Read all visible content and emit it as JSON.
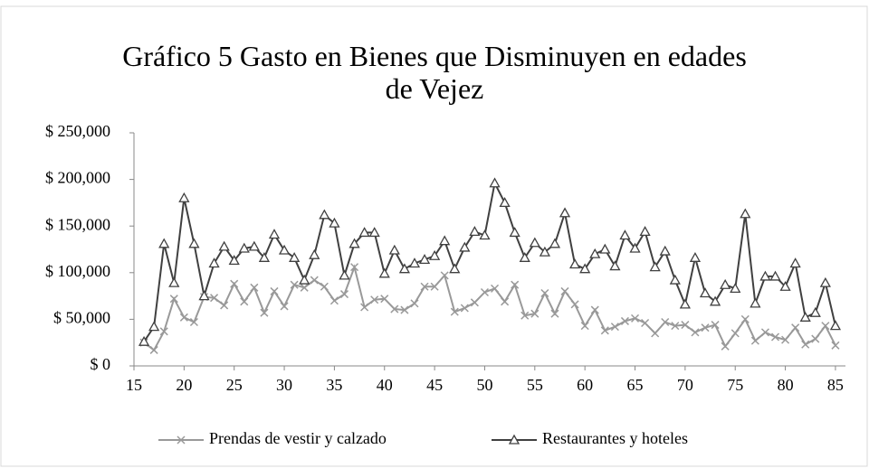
{
  "chart_data": {
    "type": "line",
    "title": "Gráfico 5 Gasto en Bienes que Disminuyen en edades de Vejez",
    "x": [
      16,
      17,
      18,
      19,
      20,
      21,
      22,
      23,
      24,
      25,
      26,
      27,
      28,
      29,
      30,
      31,
      32,
      33,
      34,
      35,
      36,
      37,
      38,
      39,
      40,
      41,
      42,
      43,
      44,
      45,
      46,
      47,
      48,
      49,
      50,
      51,
      52,
      53,
      54,
      55,
      56,
      57,
      58,
      59,
      60,
      61,
      62,
      63,
      64,
      65,
      66,
      67,
      68,
      69,
      70,
      71,
      72,
      73,
      74,
      75,
      76,
      77,
      78,
      79,
      80,
      81,
      82,
      83,
      84,
      85
    ],
    "series": [
      {
        "name": "Prendas de vestir y calzado",
        "color": "#999999",
        "marker": "x",
        "values": [
          25000,
          17000,
          37000,
          72000,
          52000,
          47000,
          74000,
          73000,
          65000,
          88000,
          69000,
          84000,
          57000,
          80000,
          64000,
          87000,
          84000,
          92000,
          85000,
          70000,
          77000,
          106000,
          63000,
          71000,
          72000,
          61000,
          60000,
          67000,
          85000,
          85000,
          97000,
          58000,
          62000,
          68000,
          79000,
          83000,
          69000,
          87000,
          54000,
          56000,
          78000,
          56000,
          80000,
          66000,
          43000,
          60000,
          38000,
          42000,
          48000,
          51000,
          46000,
          35000,
          47000,
          43000,
          44000,
          36000,
          41000,
          44000,
          21000,
          35000,
          50000,
          27000,
          36000,
          31000,
          28000,
          41000,
          23000,
          29000,
          43000,
          22000
        ]
      },
      {
        "name": "Restaurantes y hoteles",
        "color": "#404040",
        "marker": "triangle",
        "values": [
          26000,
          42000,
          131000,
          89000,
          180000,
          131000,
          75000,
          110000,
          128000,
          113000,
          126000,
          128000,
          116000,
          141000,
          124000,
          116000,
          92000,
          119000,
          162000,
          153000,
          97000,
          131000,
          143000,
          143000,
          99000,
          124000,
          104000,
          110000,
          114000,
          118000,
          134000,
          104000,
          127000,
          144000,
          140000,
          196000,
          175000,
          143000,
          116000,
          132000,
          122000,
          131000,
          164000,
          109000,
          104000,
          120000,
          125000,
          107000,
          140000,
          126000,
          144000,
          106000,
          123000,
          92000,
          66000,
          116000,
          78000,
          69000,
          87000,
          83000,
          163000,
          67000,
          96000,
          96000,
          85000,
          110000,
          52000,
          57000,
          89000,
          43000
        ]
      }
    ],
    "xlim": [
      15,
      86
    ],
    "xticks": [
      15,
      20,
      25,
      30,
      35,
      40,
      45,
      50,
      55,
      60,
      65,
      70,
      75,
      80,
      85
    ],
    "ylim": [
      0,
      250000
    ],
    "yticks": [
      {
        "value": 0,
        "label": "$ 0"
      },
      {
        "value": 50000,
        "label": "$ 50,000"
      },
      {
        "value": 100000,
        "label": "$ 100,000"
      },
      {
        "value": 150000,
        "label": "$ 150,000"
      },
      {
        "value": 200000,
        "label": "$ 200,000"
      },
      {
        "value": 250000,
        "label": "$ 250,000"
      }
    ],
    "grid": false,
    "legend": "bottom"
  }
}
